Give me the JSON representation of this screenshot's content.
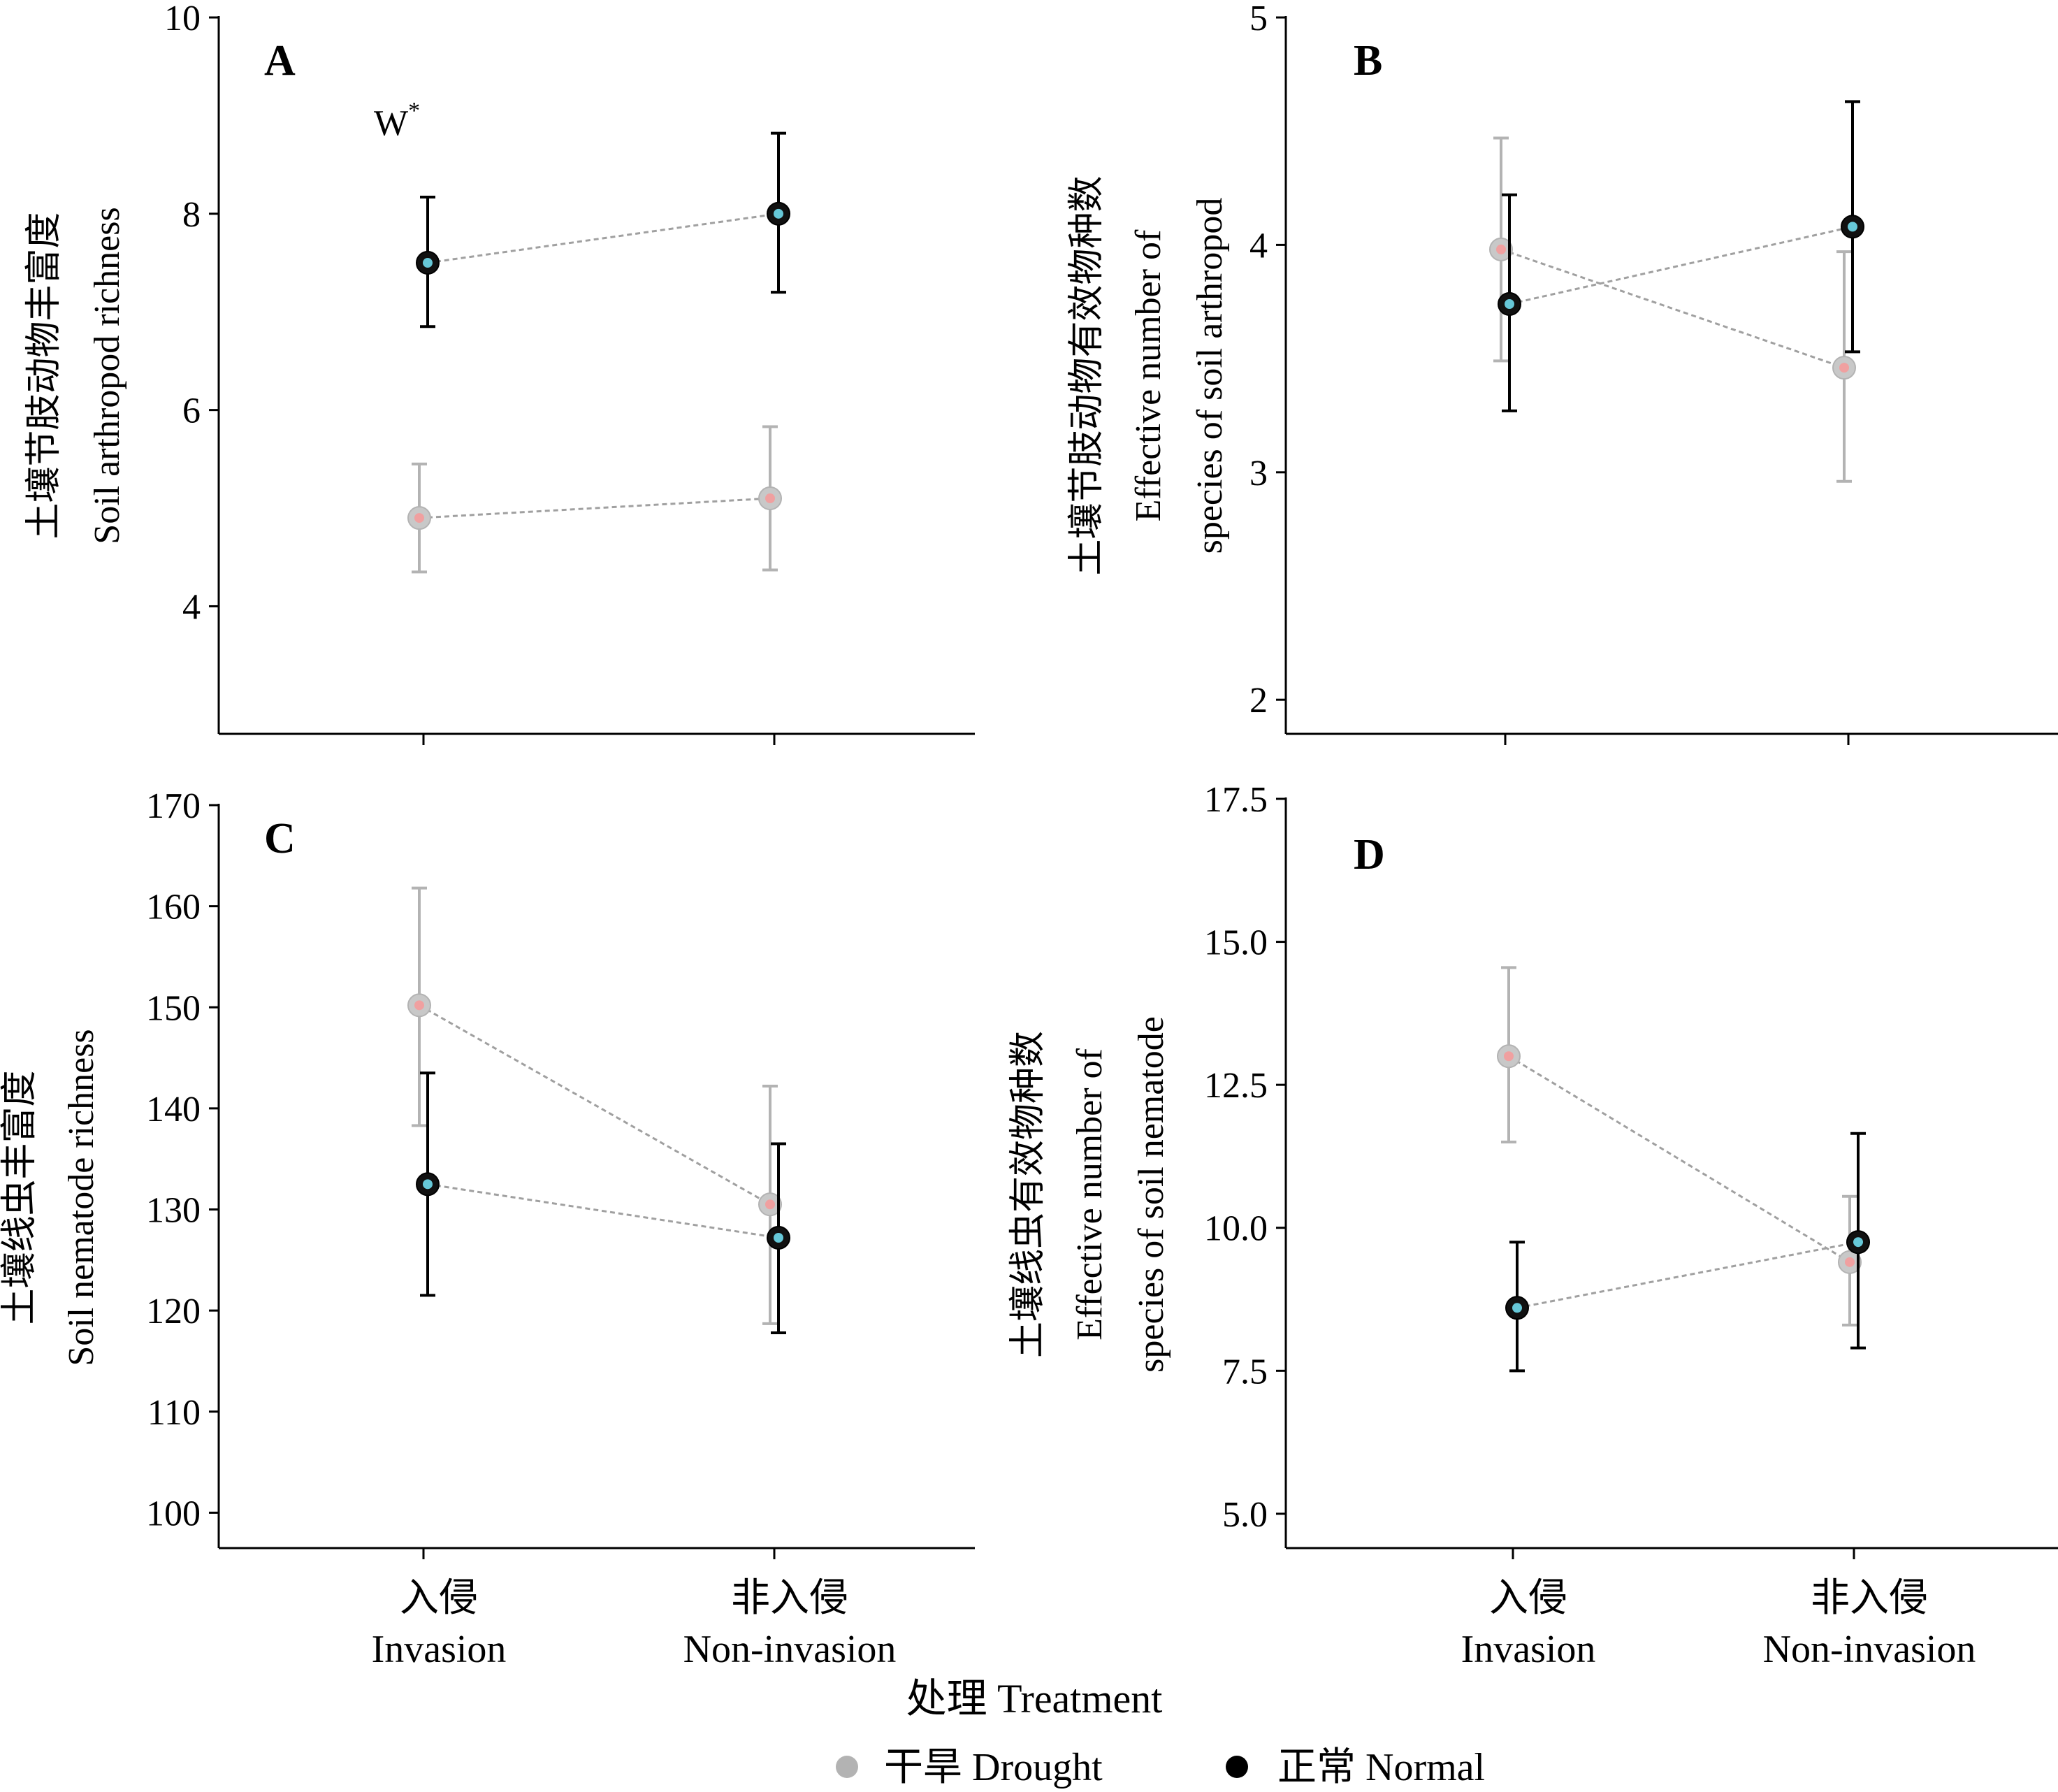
{
  "figure": {
    "x_axis_title": "处理 Treatment",
    "legend": [
      {
        "label": "干旱 Drought",
        "color": "#b3b3b3"
      },
      {
        "label": "正常 Normal",
        "color": "#000000"
      }
    ]
  },
  "chart_data": [
    {
      "type": "line",
      "panel": "A",
      "ylabel_lines": [
        "土壤节肢动物丰富度",
        "Soil arthropod richness"
      ],
      "ylim": [
        2.7,
        10
      ],
      "yticks": [
        "4",
        "6",
        "8",
        "10"
      ],
      "categories": [
        [
          "入侵",
          "Invasion"
        ],
        [
          "非入侵",
          "Non-invasion"
        ]
      ],
      "annotation": {
        "text": "W",
        "sup": "*"
      },
      "series": [
        {
          "name": "干旱 Drought",
          "values": [
            4.9,
            5.1
          ],
          "err_low": [
            4.35,
            4.37
          ],
          "err_high": [
            5.45,
            5.83
          ]
        },
        {
          "name": "正常 Normal",
          "values": [
            7.5,
            8.0
          ],
          "err_low": [
            6.85,
            7.2
          ],
          "err_high": [
            8.17,
            8.82
          ]
        }
      ]
    },
    {
      "type": "line",
      "panel": "B",
      "ylabel_lines": [
        "土壤节肢动物有效物种数",
        "Effective number of",
        "species of soil arthropod"
      ],
      "ylim": [
        1.85,
        5
      ],
      "yticks": [
        "2",
        "3",
        "4",
        "5"
      ],
      "categories": [
        [
          "入侵",
          "Invasion"
        ],
        [
          "非入侵",
          "Non-invasion"
        ]
      ],
      "series": [
        {
          "name": "干旱 Drought",
          "values": [
            3.98,
            3.46
          ],
          "err_low": [
            3.49,
            2.96
          ],
          "err_high": [
            4.47,
            3.97
          ]
        },
        {
          "name": "正常 Normal",
          "values": [
            3.74,
            4.08
          ],
          "err_low": [
            3.27,
            3.53
          ],
          "err_high": [
            4.22,
            4.63
          ]
        }
      ]
    },
    {
      "type": "line",
      "panel": "C",
      "ylabel_lines": [
        "土壤线虫丰富度",
        "Soil nematode richness"
      ],
      "ylim": [
        96.5,
        170
      ],
      "yticks": [
        "100",
        "110",
        "120",
        "130",
        "140",
        "150",
        "160",
        "170"
      ],
      "categories": [
        [
          "入侵",
          "Invasion"
        ],
        [
          "非入侵",
          "Non-invasion"
        ]
      ],
      "series": [
        {
          "name": "干旱 Drought",
          "values": [
            150.2,
            130.5
          ],
          "err_low": [
            138.3,
            118.7
          ],
          "err_high": [
            161.8,
            142.2
          ]
        },
        {
          "name": "正常 Normal",
          "values": [
            132.5,
            127.2
          ],
          "err_low": [
            121.5,
            117.8
          ],
          "err_high": [
            143.5,
            136.5
          ]
        }
      ]
    },
    {
      "type": "line",
      "panel": "D",
      "ylabel_lines": [
        "土壤线虫有效物种数",
        "Effective number of",
        "species of soil nematode"
      ],
      "ylim": [
        4.4,
        17.5
      ],
      "yticks": [
        "5.0",
        "7.5",
        "10.0",
        "12.5",
        "15.0",
        "17.5"
      ],
      "categories": [
        [
          "入侵",
          "Invasion"
        ],
        [
          "非入侵",
          "Non-invasion"
        ]
      ],
      "series": [
        {
          "name": "干旱 Drought",
          "values": [
            13.0,
            9.4
          ],
          "err_low": [
            11.5,
            8.3
          ],
          "err_high": [
            14.55,
            10.55
          ]
        },
        {
          "name": "正常 Normal",
          "values": [
            8.6,
            9.75
          ],
          "err_low": [
            7.5,
            7.9
          ],
          "err_high": [
            9.75,
            11.65
          ]
        }
      ]
    }
  ]
}
